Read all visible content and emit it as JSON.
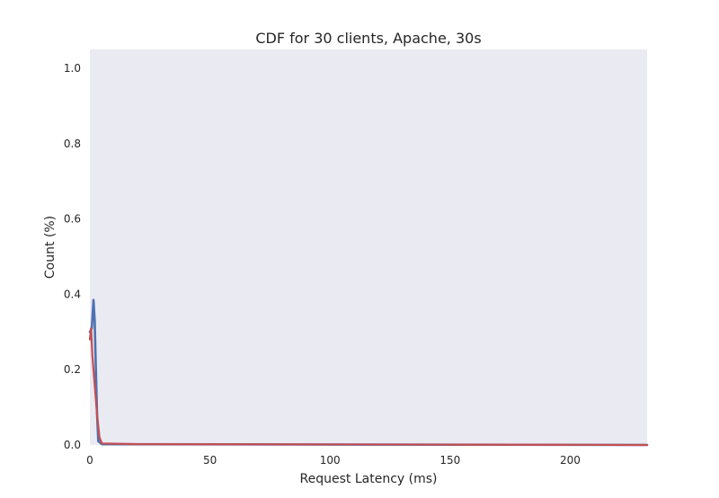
{
  "chart_data": {
    "type": "line",
    "title": "CDF for 30 clients, Apache, 30s",
    "xlabel": "Request Latency (ms)",
    "ylabel": "Count (%)",
    "xlim": [
      0,
      232
    ],
    "ylim": [
      0,
      1.05
    ],
    "x_ticks": [
      0,
      50,
      100,
      150,
      200
    ],
    "y_ticks": [
      0.0,
      0.2,
      0.4,
      0.6,
      0.8,
      1.0
    ],
    "x_tick_labels": [
      "0",
      "50",
      "100",
      "150",
      "200"
    ],
    "y_tick_labels": [
      "0.0",
      "0.2",
      "0.4",
      "0.6",
      "0.8",
      "1.0"
    ],
    "grid": false,
    "background": "#eaeaf2",
    "series": [
      {
        "color": "#4c72b0",
        "points": [
          [
            0.0,
            0.3
          ],
          [
            0.8,
            0.31
          ],
          [
            1.5,
            0.385
          ],
          [
            2.0,
            0.33
          ],
          [
            2.5,
            0.2
          ],
          [
            3.0,
            0.08
          ],
          [
            3.5,
            0.01
          ],
          [
            5.0,
            0.002
          ],
          [
            232.0,
            0.0
          ]
        ]
      },
      {
        "color": "#c44e52",
        "points": [
          [
            0.0,
            0.28
          ],
          [
            0.5,
            0.31
          ],
          [
            1.0,
            0.24
          ],
          [
            2.0,
            0.16
          ],
          [
            3.0,
            0.08
          ],
          [
            4.0,
            0.02
          ],
          [
            5.0,
            0.004
          ],
          [
            20.0,
            0.002
          ],
          [
            150.0,
            0.001
          ],
          [
            232.0,
            0.0
          ]
        ]
      }
    ]
  }
}
